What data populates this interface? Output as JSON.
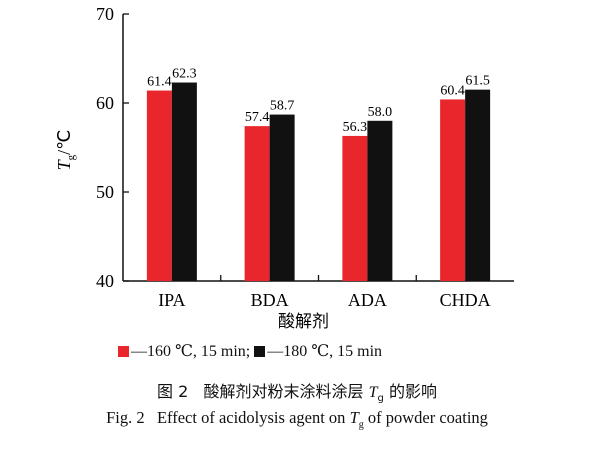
{
  "chart_data": {
    "type": "bar",
    "categories": [
      "IPA",
      "BDA",
      "ADA",
      "CHDA"
    ],
    "series": [
      {
        "name": "160 ℃, 15 min",
        "values": [
          61.4,
          57.4,
          56.3,
          60.4
        ],
        "color": "#e8262b"
      },
      {
        "name": "180 ℃, 15 min",
        "values": [
          62.3,
          58.7,
          58.0,
          61.5
        ],
        "color": "#111111"
      }
    ],
    "ylabel": "Tg/℃",
    "xlabel": "酸解剂",
    "ylim": [
      40,
      70
    ],
    "yticks": [
      40,
      50,
      60,
      70
    ],
    "grid": false,
    "legend": "bottom"
  },
  "legend": {
    "item1": "—160 ℃, 15 min;",
    "item2": "—180 ℃, 15 min"
  },
  "caption": {
    "cn_fig": "图 2",
    "cn_pre": "酸解剂对粉末涂料涂层 ",
    "cn_T": "T",
    "cn_sub": "g",
    "cn_post": " 的影响",
    "en_fig": "Fig. 2",
    "en_pre": "Effect of acidolysis agent on ",
    "en_T": "T",
    "en_sub": "g",
    "en_post": " of powder coating"
  }
}
